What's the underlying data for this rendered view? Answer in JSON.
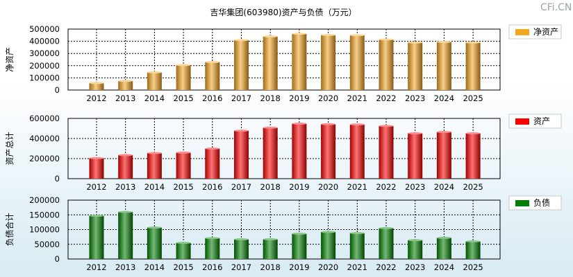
{
  "title": "吉华集团(603980)资产与负债（万元）",
  "watermark": "CFi.CN",
  "chart_data": [
    {
      "type": "bar",
      "ylabel": "净资产",
      "legend": "净资产",
      "color": "#f5a623",
      "categories": [
        "2012",
        "2013",
        "2014",
        "2015",
        "2016",
        "2017",
        "2018",
        "2019",
        "2020",
        "2021",
        "2022",
        "2023",
        "2024",
        "2025"
      ],
      "values": [
        58000,
        75000,
        145000,
        205000,
        230000,
        410000,
        440000,
        462000,
        452000,
        450000,
        415000,
        390000,
        395000,
        390000
      ],
      "ylim": [
        0,
        500000
      ],
      "yticks": [
        0,
        100000,
        200000,
        300000,
        400000,
        500000
      ]
    },
    {
      "type": "bar",
      "ylabel": "资产总计",
      "legend": "资产",
      "color": "#ff0000",
      "categories": [
        "2012",
        "2013",
        "2014",
        "2015",
        "2016",
        "2017",
        "2018",
        "2019",
        "2020",
        "2021",
        "2022",
        "2023",
        "2024",
        "2025"
      ],
      "values": [
        205000,
        235000,
        255000,
        260000,
        300000,
        478000,
        508000,
        548000,
        543000,
        540000,
        525000,
        452000,
        465000,
        452000
      ],
      "ylim": [
        0,
        600000
      ],
      "yticks": [
        0,
        200000,
        400000,
        600000
      ]
    },
    {
      "type": "bar",
      "ylabel": "负债合计",
      "legend": "负债",
      "color": "#007f00",
      "categories": [
        "2012",
        "2013",
        "2014",
        "2015",
        "2016",
        "2017",
        "2018",
        "2019",
        "2020",
        "2021",
        "2022",
        "2023",
        "2024",
        "2025"
      ],
      "values": [
        147000,
        160000,
        107000,
        55000,
        71000,
        67000,
        67000,
        86000,
        92000,
        88000,
        105000,
        64000,
        72000,
        60000
      ],
      "ylim": [
        0,
        200000
      ],
      "yticks": [
        0,
        50000,
        100000,
        150000,
        200000
      ]
    }
  ]
}
